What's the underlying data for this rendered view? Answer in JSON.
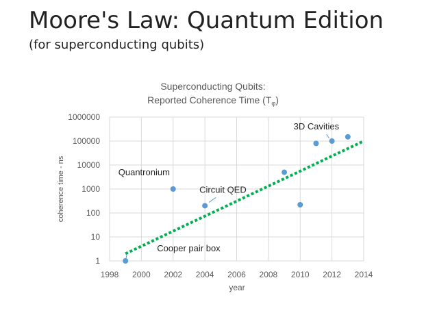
{
  "slide": {
    "title": "Moore's Law: Quantum Edition",
    "subtitle": "(for superconducting qubits)"
  },
  "chart_data": {
    "type": "scatter",
    "title_line1": "Superconducting Qubits:",
    "title_line2": "Reported Coherence Time (T",
    "title_sub": "φ",
    "title_end": ")",
    "xlabel": "year",
    "ylabel": "coherence time - ns",
    "xlim": [
      1998,
      2014
    ],
    "ylim": [
      1,
      1000000
    ],
    "y_scale": "log",
    "x_ticks": [
      1998,
      2000,
      2002,
      2004,
      2006,
      2008,
      2010,
      2012,
      2014
    ],
    "y_ticks": [
      1,
      10,
      100,
      1000,
      10000,
      100000,
      1000000
    ],
    "y_tick_labels": [
      "1",
      "10",
      "100",
      "1000",
      "10000",
      "100000",
      "1000000"
    ],
    "grid": true,
    "point_color": "#5b9bd5",
    "trend_color": "#00b050",
    "points": [
      {
        "x": 1999,
        "y": 1
      },
      {
        "x": 2002,
        "y": 1000
      },
      {
        "x": 2004,
        "y": 200
      },
      {
        "x": 2009,
        "y": 5000
      },
      {
        "x": 2010,
        "y": 220
      },
      {
        "x": 2011,
        "y": 80000
      },
      {
        "x": 2012,
        "y": 100000
      },
      {
        "x": 2013,
        "y": 150000
      }
    ],
    "trendline": {
      "x": [
        1999,
        2014
      ],
      "y": [
        2,
        100000
      ]
    },
    "annotations": [
      {
        "text": "Cooper pair box",
        "x": 1999,
        "y": 1
      },
      {
        "text": "Quantronium",
        "x": 2002,
        "y": 1000
      },
      {
        "text": "Circuit QED",
        "x": 2004,
        "y": 200
      },
      {
        "text": "3D Cavities",
        "x": 2012,
        "y": 100000
      }
    ]
  }
}
